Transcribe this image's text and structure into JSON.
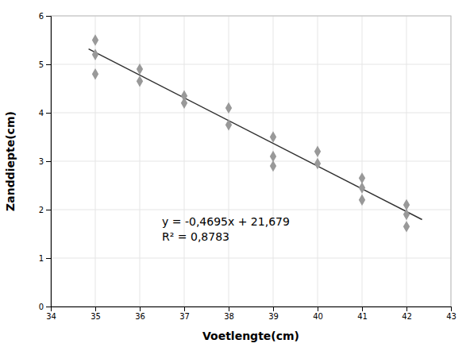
{
  "chart_data": {
    "type": "scatter",
    "x_label": "Voetlengte(cm)",
    "y_label": "Zanddiepte(cm)",
    "series": [
      {
        "type": "scatter",
        "color": "#999999",
        "marker": "diamond",
        "x": [
          35,
          35,
          35,
          36,
          36,
          37,
          37,
          38,
          38,
          39,
          39,
          39,
          40,
          40,
          41,
          41,
          41,
          42,
          42,
          42
        ],
        "values": [
          5.5,
          5.2,
          4.8,
          4.9,
          4.65,
          4.35,
          4.2,
          4.1,
          3.75,
          3.5,
          3.1,
          2.9,
          3.2,
          2.95,
          2.65,
          2.45,
          2.2,
          2.1,
          1.9,
          1.65
        ]
      },
      {
        "type": "line",
        "color": "#303030",
        "line_style": "solid",
        "x": [
          34.85,
          42.35
        ],
        "values": [
          5.316925,
          1.795675
        ]
      }
    ],
    "annotations": [
      {
        "x": 36.5,
        "y": 1.3,
        "lines": [
          "y = -0,4695x + 21,679",
          "R² = 0,8783"
        ]
      }
    ],
    "xlim": [
      34,
      43
    ],
    "ylim": [
      0,
      6
    ],
    "xticks": [
      34,
      35,
      36,
      37,
      38,
      39,
      40,
      41,
      42,
      43
    ],
    "yticks": [
      0,
      1,
      2,
      3,
      4,
      5,
      6
    ],
    "grid": true
  }
}
